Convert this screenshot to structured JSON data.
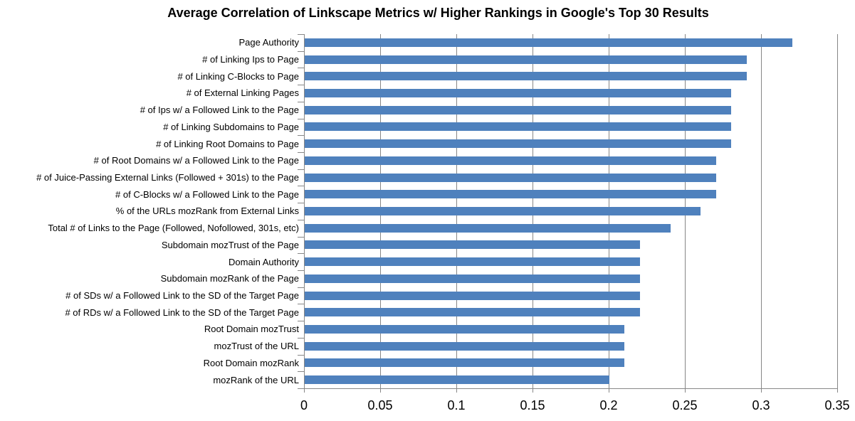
{
  "chart_data": {
    "type": "bar",
    "orientation": "horizontal",
    "title": "Average Correlation of Linkscape Metrics w/ Higher Rankings in Google's Top 30 Results",
    "categories": [
      "Page Authority",
      "# of Linking Ips to Page",
      "# of Linking C-Blocks to Page",
      "# of External Linking Pages",
      "# of Ips w/ a Followed Link to the Page",
      "# of Linking Subdomains to Page",
      "# of Linking Root Domains to Page",
      "# of Root Domains w/ a Followed Link to the Page",
      "# of Juice-Passing External Links (Followed + 301s) to the Page",
      "# of C-Blocks w/ a Followed Link to the Page",
      "% of the URLs mozRank from External Links",
      "Total # of Links to the Page (Followed, Nofollowed, 301s, etc)",
      "Subdomain mozTrust of the Page",
      "Domain Authority",
      "Subdomain mozRank of the Page",
      "# of SDs w/ a Followed Link to the SD of the Target Page",
      "# of RDs w/ a Followed Link to the SD of the Target Page",
      "Root Domain mozTrust",
      "mozTrust of the URL",
      "Root Domain mozRank",
      "mozRank of the URL"
    ],
    "values": [
      0.32,
      0.29,
      0.29,
      0.28,
      0.28,
      0.28,
      0.28,
      0.27,
      0.27,
      0.27,
      0.26,
      0.24,
      0.22,
      0.22,
      0.22,
      0.22,
      0.22,
      0.21,
      0.21,
      0.21,
      0.2
    ],
    "xlabel": "",
    "ylabel": "",
    "xlim": [
      0,
      0.35
    ],
    "xticks": [
      0,
      0.05,
      0.1,
      0.15,
      0.2,
      0.25,
      0.3,
      0.35
    ],
    "xtick_labels": [
      "0",
      "0.05",
      "0.1",
      "0.15",
      "0.2",
      "0.25",
      "0.3",
      "0.35"
    ],
    "grid": "vertical-gridlines-on",
    "legend": "none",
    "bar_color": "#4F81BD",
    "gridline_color": "#878787",
    "axis_color": "#878787",
    "text_color": "#000000",
    "background_color": "#FFFFFF"
  }
}
